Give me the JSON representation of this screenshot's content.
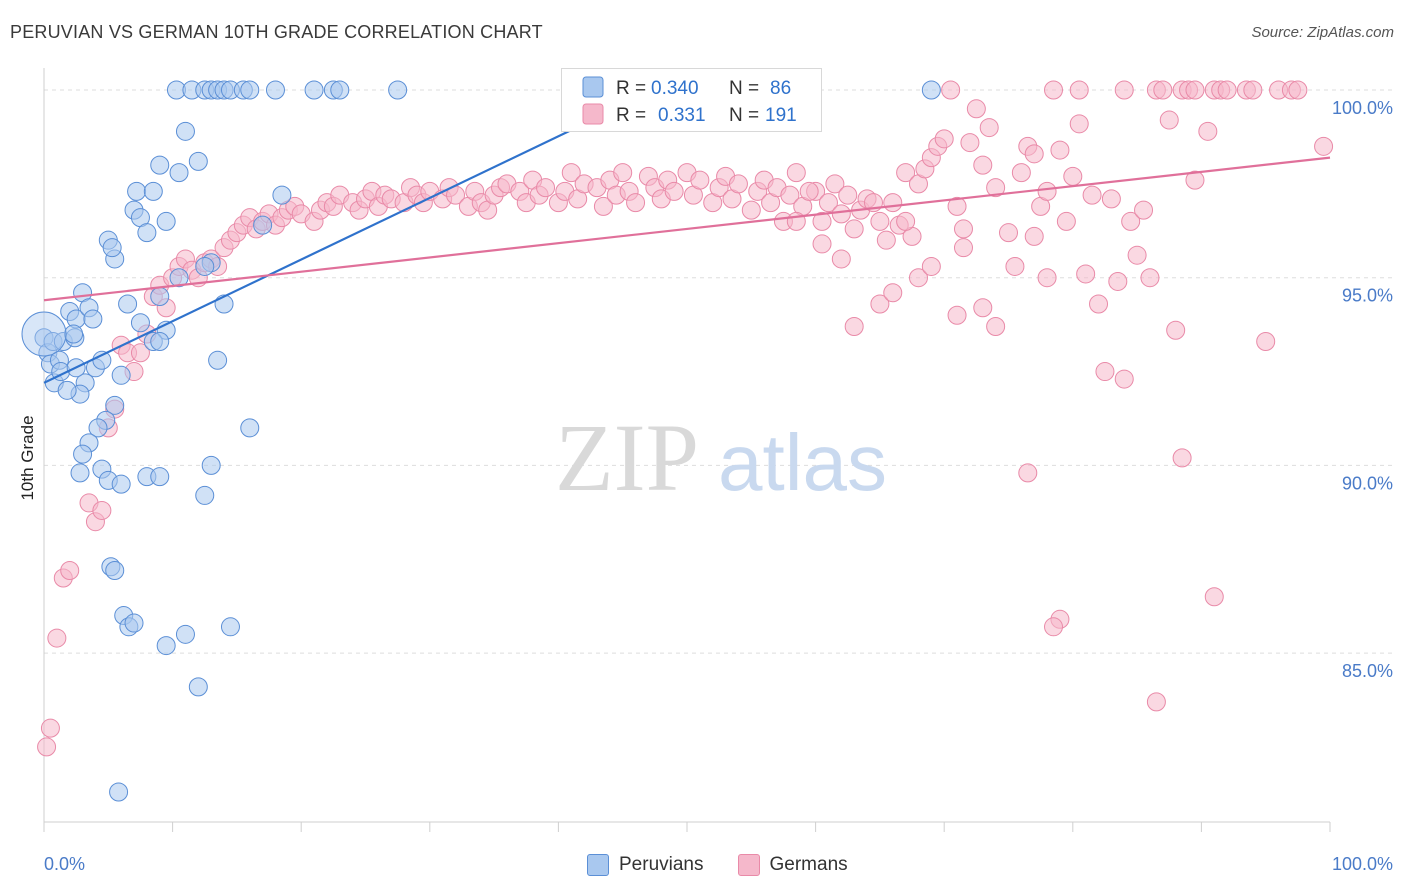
{
  "title": "PERUVIAN VS GERMAN 10TH GRADE CORRELATION CHART",
  "source": "Source: ZipAtlas.com",
  "watermark": {
    "zip": "ZIP",
    "atlas": "atlas"
  },
  "colors": {
    "blue_fill": "#a9c8ef",
    "blue_stroke": "#5b8fd6",
    "blue_line": "#2f72cc",
    "pink_fill": "#f5b8cb",
    "pink_stroke": "#e98aa8",
    "pink_line": "#e0709a",
    "axis_label": "#4a7bc8",
    "grid": "#dddddd"
  },
  "legend": {
    "rows": [
      {
        "r_label": "R = ",
        "r_value": "0.340",
        "n_label": "N = ",
        "n_value": "86"
      },
      {
        "r_label": "R = ",
        "r_value": "0.331",
        "n_label": "N = ",
        "n_value": "191"
      }
    ]
  },
  "bottom_legend": {
    "peruvians": "Peruvians",
    "germans": "Germans"
  },
  "chart_data": {
    "type": "scatter",
    "ylabel": "10th Grade",
    "xlim": [
      0,
      100
    ],
    "ylim": [
      80.5,
      100.8
    ],
    "x_tick_labels": [
      "0.0%",
      "100.0%"
    ],
    "y_ticks": [
      85,
      90,
      95,
      100
    ],
    "y_tick_labels": [
      "85.0%",
      "90.0%",
      "95.0%",
      "100.0%"
    ],
    "series": [
      {
        "name": "Peruvians",
        "r": 0.34,
        "n": 86,
        "trend": {
          "x0": 0,
          "y0": 92.2,
          "x1": 47.5,
          "y1": 100.0
        },
        "points": [
          [
            0,
            93.4
          ],
          [
            0.3,
            93.0
          ],
          [
            0.5,
            92.7
          ],
          [
            0.8,
            92.2
          ],
          [
            0.7,
            93.3
          ],
          [
            1.2,
            92.8
          ],
          [
            1.3,
            92.5
          ],
          [
            1.5,
            93.3
          ],
          [
            2.0,
            94.1
          ],
          [
            2.4,
            93.4
          ],
          [
            2.5,
            93.9
          ],
          [
            3.0,
            94.6
          ],
          [
            3.5,
            94.2
          ],
          [
            3.8,
            93.9
          ],
          [
            4.0,
            92.6
          ],
          [
            2.3,
            93.5
          ],
          [
            4.5,
            92.8
          ],
          [
            5.5,
            95.5
          ],
          [
            5.0,
            96.0
          ],
          [
            5.3,
            95.8
          ],
          [
            7.0,
            96.8
          ],
          [
            7.5,
            96.6
          ],
          [
            8.0,
            96.2
          ],
          [
            7.2,
            97.3
          ],
          [
            8.5,
            97.3
          ],
          [
            9.5,
            96.5
          ],
          [
            9.0,
            98.0
          ],
          [
            10.5,
            97.8
          ],
          [
            11.0,
            98.9
          ],
          [
            12.0,
            98.1
          ],
          [
            10.3,
            100
          ],
          [
            11.5,
            100
          ],
          [
            12.5,
            100
          ],
          [
            13.0,
            100
          ],
          [
            13.5,
            100
          ],
          [
            14.0,
            100
          ],
          [
            14.5,
            100
          ],
          [
            15.5,
            100
          ],
          [
            16.0,
            100
          ],
          [
            18.0,
            100
          ],
          [
            21.0,
            100
          ],
          [
            22.5,
            100
          ],
          [
            23.0,
            100
          ],
          [
            27.5,
            100
          ],
          [
            17.0,
            96.4
          ],
          [
            18.5,
            97.2
          ],
          [
            14.0,
            94.3
          ],
          [
            13.0,
            95.4
          ],
          [
            12.5,
            95.3
          ],
          [
            10.5,
            95.0
          ],
          [
            9.0,
            94.5
          ],
          [
            9.5,
            93.6
          ],
          [
            8.5,
            93.3
          ],
          [
            9.0,
            93.3
          ],
          [
            7.5,
            93.8
          ],
          [
            6.5,
            94.3
          ],
          [
            6.0,
            92.4
          ],
          [
            5.5,
            91.6
          ],
          [
            4.8,
            91.2
          ],
          [
            4.2,
            91.0
          ],
          [
            3.5,
            90.6
          ],
          [
            3.0,
            90.3
          ],
          [
            3.2,
            92.2
          ],
          [
            2.8,
            91.9
          ],
          [
            2.5,
            92.6
          ],
          [
            1.8,
            92.0
          ],
          [
            2.8,
            89.8
          ],
          [
            4.5,
            89.9
          ],
          [
            5.0,
            89.6
          ],
          [
            6.0,
            89.5
          ],
          [
            8.0,
            89.7
          ],
          [
            9.0,
            89.7
          ],
          [
            12.5,
            89.2
          ],
          [
            13.0,
            90.0
          ],
          [
            13.5,
            92.8
          ],
          [
            16.0,
            91.0
          ],
          [
            5.2,
            87.3
          ],
          [
            5.5,
            87.2
          ],
          [
            6.2,
            86.0
          ],
          [
            6.6,
            85.7
          ],
          [
            7.0,
            85.8
          ],
          [
            9.5,
            85.2
          ],
          [
            11.0,
            85.5
          ],
          [
            12.0,
            84.1
          ],
          [
            14.5,
            85.7
          ],
          [
            5.8,
            81.3
          ],
          [
            69.0,
            100
          ]
        ]
      },
      {
        "name": "Germans",
        "r": 0.331,
        "n": 191,
        "trend": {
          "x0": 0,
          "y0": 94.4,
          "x1": 100,
          "y1": 98.2
        },
        "points": [
          [
            0.2,
            82.5
          ],
          [
            0.5,
            83.0
          ],
          [
            1.0,
            85.4
          ],
          [
            1.5,
            87.0
          ],
          [
            2.0,
            87.2
          ],
          [
            3.5,
            89.0
          ],
          [
            4.0,
            88.5
          ],
          [
            4.5,
            88.8
          ],
          [
            5.0,
            91.0
          ],
          [
            5.5,
            91.5
          ],
          [
            6.0,
            93.2
          ],
          [
            6.5,
            93.0
          ],
          [
            7.0,
            92.5
          ],
          [
            7.5,
            93.0
          ],
          [
            8.0,
            93.5
          ],
          [
            8.5,
            94.5
          ],
          [
            9.0,
            94.8
          ],
          [
            9.5,
            94.2
          ],
          [
            10.0,
            95.0
          ],
          [
            10.5,
            95.3
          ],
          [
            11.0,
            95.5
          ],
          [
            11.5,
            95.2
          ],
          [
            12.0,
            95.0
          ],
          [
            12.5,
            95.4
          ],
          [
            13.0,
            95.5
          ],
          [
            13.5,
            95.3
          ],
          [
            14.0,
            95.8
          ],
          [
            14.5,
            96.0
          ],
          [
            15.0,
            96.2
          ],
          [
            15.5,
            96.4
          ],
          [
            16.0,
            96.6
          ],
          [
            16.5,
            96.3
          ],
          [
            17.0,
            96.5
          ],
          [
            17.5,
            96.7
          ],
          [
            18.0,
            96.4
          ],
          [
            18.5,
            96.6
          ],
          [
            19.0,
            96.8
          ],
          [
            19.5,
            96.9
          ],
          [
            20.0,
            96.7
          ],
          [
            21.0,
            96.5
          ],
          [
            21.5,
            96.8
          ],
          [
            22.0,
            97.0
          ],
          [
            22.5,
            96.9
          ],
          [
            23.0,
            97.2
          ],
          [
            24.0,
            97.0
          ],
          [
            24.5,
            96.8
          ],
          [
            25.0,
            97.1
          ],
          [
            25.5,
            97.3
          ],
          [
            26.0,
            96.9
          ],
          [
            26.5,
            97.2
          ],
          [
            27.0,
            97.1
          ],
          [
            28.0,
            97.0
          ],
          [
            28.5,
            97.4
          ],
          [
            29.0,
            97.2
          ],
          [
            29.5,
            97.0
          ],
          [
            30.0,
            97.3
          ],
          [
            31.0,
            97.1
          ],
          [
            31.5,
            97.4
          ],
          [
            32.0,
            97.2
          ],
          [
            33.0,
            96.9
          ],
          [
            33.5,
            97.3
          ],
          [
            34.0,
            97.0
          ],
          [
            34.5,
            96.8
          ],
          [
            35.0,
            97.2
          ],
          [
            35.5,
            97.4
          ],
          [
            36.0,
            97.5
          ],
          [
            37.0,
            97.3
          ],
          [
            37.5,
            97.0
          ],
          [
            38.0,
            97.6
          ],
          [
            38.5,
            97.2
          ],
          [
            39.0,
            97.4
          ],
          [
            40.0,
            97.0
          ],
          [
            40.5,
            97.3
          ],
          [
            41.0,
            97.8
          ],
          [
            41.5,
            97.1
          ],
          [
            42.0,
            97.5
          ],
          [
            43.0,
            97.4
          ],
          [
            43.5,
            96.9
          ],
          [
            44.0,
            97.6
          ],
          [
            44.5,
            97.2
          ],
          [
            45.0,
            97.8
          ],
          [
            45.5,
            97.3
          ],
          [
            46.0,
            97.0
          ],
          [
            47.0,
            97.7
          ],
          [
            47.5,
            97.4
          ],
          [
            48.0,
            97.1
          ],
          [
            48.5,
            97.6
          ],
          [
            49.0,
            97.3
          ],
          [
            50.0,
            97.8
          ],
          [
            50.5,
            97.2
          ],
          [
            51.0,
            97.6
          ],
          [
            52.0,
            97.0
          ],
          [
            52.5,
            97.4
          ],
          [
            53.0,
            97.7
          ],
          [
            53.5,
            97.1
          ],
          [
            54.0,
            97.5
          ],
          [
            55.0,
            96.8
          ],
          [
            55.5,
            97.3
          ],
          [
            56.0,
            97.6
          ],
          [
            56.5,
            97.0
          ],
          [
            57.0,
            97.4
          ],
          [
            57.5,
            96.5
          ],
          [
            58.0,
            97.2
          ],
          [
            58.5,
            97.8
          ],
          [
            59.0,
            96.9
          ],
          [
            60.0,
            97.3
          ],
          [
            60.5,
            96.5
          ],
          [
            61.0,
            97.0
          ],
          [
            61.5,
            97.5
          ],
          [
            62.0,
            96.7
          ],
          [
            62.5,
            97.2
          ],
          [
            63.0,
            96.3
          ],
          [
            63.5,
            96.8
          ],
          [
            64.0,
            97.1
          ],
          [
            65.0,
            96.5
          ],
          [
            65.5,
            96.0
          ],
          [
            66.0,
            97.0
          ],
          [
            66.5,
            96.4
          ],
          [
            67.0,
            97.8
          ],
          [
            67.5,
            96.1
          ],
          [
            68.0,
            97.5
          ],
          [
            68.5,
            97.9
          ],
          [
            69.0,
            98.2
          ],
          [
            69.5,
            98.5
          ],
          [
            70.0,
            98.7
          ],
          [
            71.0,
            96.9
          ],
          [
            71.5,
            96.3
          ],
          [
            72.0,
            98.6
          ],
          [
            73.0,
            98.0
          ],
          [
            73.5,
            99.0
          ],
          [
            74.0,
            97.4
          ],
          [
            75.0,
            96.2
          ],
          [
            75.5,
            95.3
          ],
          [
            76.5,
            98.5
          ],
          [
            77.0,
            98.3
          ],
          [
            77.5,
            96.9
          ],
          [
            78.0,
            97.3
          ],
          [
            79.0,
            98.4
          ],
          [
            80.0,
            97.7
          ],
          [
            81.5,
            97.2
          ],
          [
            83.0,
            97.1
          ],
          [
            84.5,
            96.5
          ],
          [
            85.0,
            95.6
          ],
          [
            87.5,
            99.2
          ],
          [
            89.5,
            97.6
          ],
          [
            90.5,
            98.9
          ],
          [
            70.5,
            100
          ],
          [
            78.5,
            100
          ],
          [
            80.5,
            100
          ],
          [
            84.0,
            100
          ],
          [
            86.5,
            100
          ],
          [
            87.0,
            100
          ],
          [
            88.5,
            100
          ],
          [
            89.0,
            100
          ],
          [
            89.5,
            100
          ],
          [
            91.0,
            100
          ],
          [
            91.5,
            100
          ],
          [
            92.0,
            100
          ],
          [
            93.5,
            100
          ],
          [
            94.0,
            100
          ],
          [
            96.0,
            100
          ],
          [
            97.0,
            100
          ],
          [
            97.5,
            100
          ],
          [
            99.5,
            98.5
          ],
          [
            78.0,
            95.0
          ],
          [
            82.0,
            94.3
          ],
          [
            86.0,
            95.0
          ],
          [
            88.0,
            93.6
          ],
          [
            82.5,
            92.5
          ],
          [
            84.0,
            92.3
          ],
          [
            91.0,
            86.5
          ],
          [
            79.0,
            85.9
          ],
          [
            78.5,
            85.7
          ],
          [
            86.5,
            83.7
          ],
          [
            76.5,
            89.8
          ],
          [
            88.5,
            90.2
          ],
          [
            95.0,
            93.3
          ],
          [
            71.0,
            94.0
          ],
          [
            74.0,
            93.7
          ],
          [
            62.0,
            95.5
          ],
          [
            63.0,
            93.7
          ],
          [
            65.0,
            94.3
          ],
          [
            72.5,
            99.5
          ],
          [
            80.5,
            99.1
          ],
          [
            71.5,
            95.8
          ],
          [
            68.0,
            95.0
          ],
          [
            76.0,
            97.8
          ],
          [
            66.0,
            94.6
          ],
          [
            58.5,
            96.5
          ],
          [
            59.5,
            97.3
          ],
          [
            60.5,
            95.9
          ],
          [
            64.5,
            97.0
          ],
          [
            67.0,
            96.5
          ],
          [
            69.0,
            95.3
          ],
          [
            73.0,
            94.2
          ],
          [
            77.0,
            96.1
          ],
          [
            79.5,
            96.5
          ],
          [
            81.0,
            95.1
          ],
          [
            83.5,
            94.9
          ],
          [
            85.5,
            96.8
          ]
        ]
      }
    ]
  }
}
